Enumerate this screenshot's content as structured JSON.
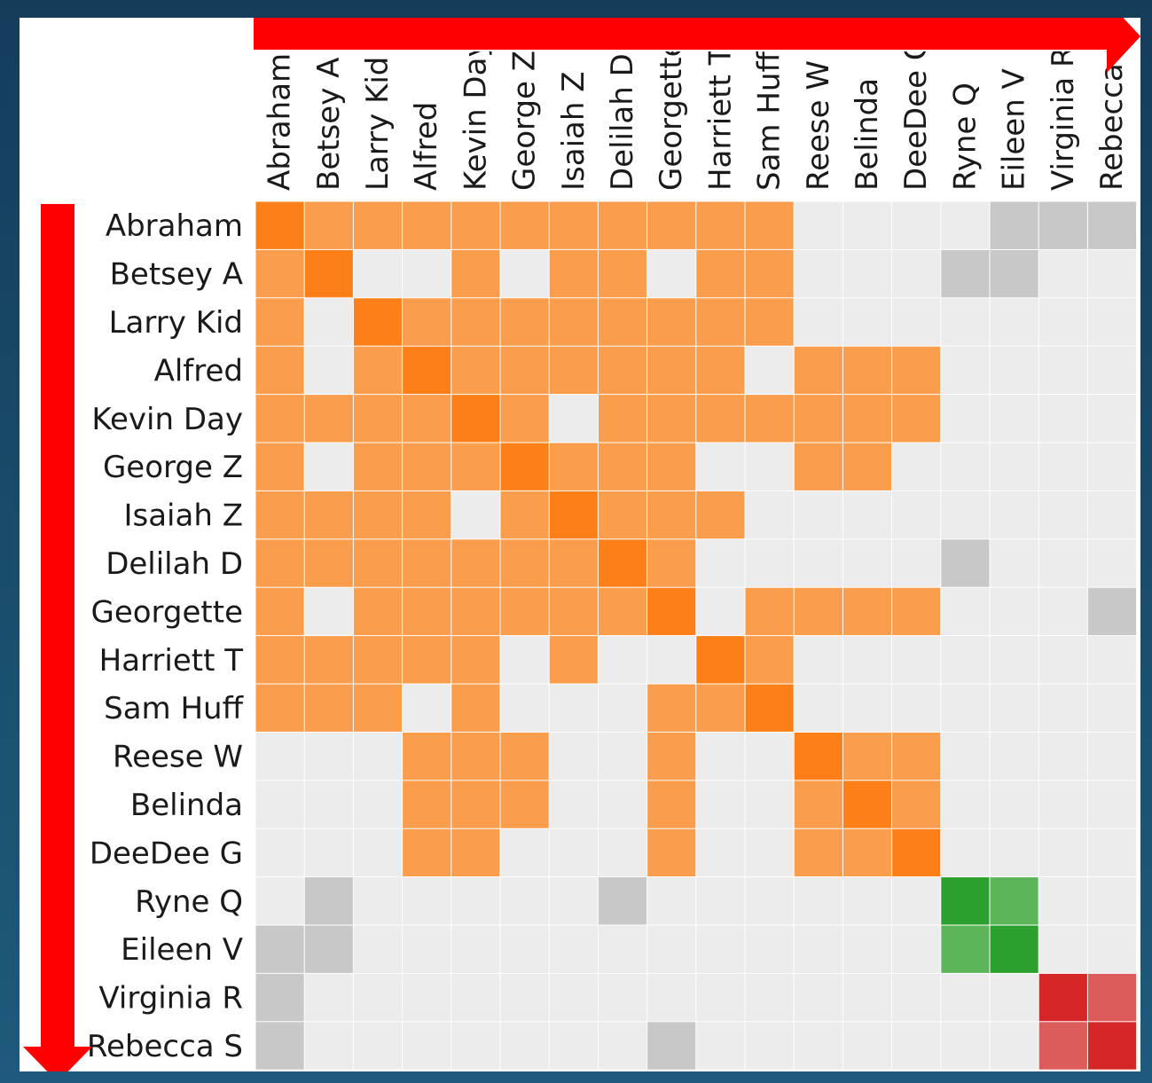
{
  "chart_data": {
    "type": "heatmap",
    "title": "",
    "row_labels": [
      "Abraham",
      "Betsey A",
      "Larry Kid",
      "Alfred",
      "Kevin Day",
      "George Z",
      "Isaiah Z",
      "Delilah D",
      "Georgette",
      "Harriett T",
      "Sam Huff",
      "Reese W",
      "Belinda",
      "DeeDee G",
      "Ryne Q",
      "Eileen V",
      "Virginia R",
      "Rebecca S"
    ],
    "col_labels": [
      "Abraham",
      "Betsey A",
      "Larry Kid",
      "Alfred",
      "Kevin Day",
      "George Z",
      "Isaiah Z",
      "Delilah D",
      "Georgette",
      "Harriett T",
      "Sam Huff",
      "Reese W",
      "Belinda",
      "DeeDee G",
      "Ryne Q",
      "Eileen V",
      "Virginia R",
      "Rebecca S"
    ],
    "legend_codes": {
      "0": "empty",
      "1": "orange group member",
      "2": "orange group self",
      "3": "grey link",
      "4": "green group member",
      "5": "green group self",
      "6": "red group member",
      "7": "red group self"
    },
    "colors": {
      "0": "#ececec",
      "1": "#fa9d4c",
      "2": "#fd7f17",
      "3": "#c8c8c8",
      "4": "#5db55a",
      "5": "#2ca02c",
      "6": "#dc5b5b",
      "7": "#d62728",
      "arrow": "#ff0000"
    },
    "matrix": [
      [
        2,
        1,
        1,
        1,
        1,
        1,
        1,
        1,
        1,
        1,
        1,
        0,
        0,
        0,
        0,
        3,
        3,
        3
      ],
      [
        1,
        2,
        0,
        0,
        1,
        0,
        1,
        1,
        0,
        1,
        1,
        0,
        0,
        0,
        3,
        3,
        0,
        0
      ],
      [
        1,
        0,
        2,
        1,
        1,
        1,
        1,
        1,
        1,
        1,
        1,
        0,
        0,
        0,
        0,
        0,
        0,
        0
      ],
      [
        1,
        0,
        1,
        2,
        1,
        1,
        1,
        1,
        1,
        1,
        0,
        1,
        1,
        1,
        0,
        0,
        0,
        0
      ],
      [
        1,
        1,
        1,
        1,
        2,
        1,
        0,
        1,
        1,
        1,
        1,
        1,
        1,
        1,
        0,
        0,
        0,
        0
      ],
      [
        1,
        0,
        1,
        1,
        1,
        2,
        1,
        1,
        1,
        0,
        0,
        1,
        1,
        0,
        0,
        0,
        0,
        0
      ],
      [
        1,
        1,
        1,
        1,
        0,
        1,
        2,
        1,
        1,
        1,
        0,
        0,
        0,
        0,
        0,
        0,
        0,
        0
      ],
      [
        1,
        1,
        1,
        1,
        1,
        1,
        1,
        2,
        1,
        0,
        0,
        0,
        0,
        0,
        3,
        0,
        0,
        0
      ],
      [
        1,
        0,
        1,
        1,
        1,
        1,
        1,
        1,
        2,
        0,
        1,
        1,
        1,
        1,
        0,
        0,
        0,
        3
      ],
      [
        1,
        1,
        1,
        1,
        1,
        0,
        1,
        0,
        0,
        2,
        1,
        0,
        0,
        0,
        0,
        0,
        0,
        0
      ],
      [
        1,
        1,
        1,
        0,
        1,
        0,
        0,
        0,
        1,
        1,
        2,
        0,
        0,
        0,
        0,
        0,
        0,
        0
      ],
      [
        0,
        0,
        0,
        1,
        1,
        1,
        0,
        0,
        1,
        0,
        0,
        2,
        1,
        1,
        0,
        0,
        0,
        0
      ],
      [
        0,
        0,
        0,
        1,
        1,
        1,
        0,
        0,
        1,
        0,
        0,
        1,
        2,
        1,
        0,
        0,
        0,
        0
      ],
      [
        0,
        0,
        0,
        1,
        1,
        0,
        0,
        0,
        1,
        0,
        0,
        1,
        1,
        2,
        0,
        0,
        0,
        0
      ],
      [
        0,
        3,
        0,
        0,
        0,
        0,
        0,
        3,
        0,
        0,
        0,
        0,
        0,
        0,
        5,
        4,
        0,
        0
      ],
      [
        3,
        3,
        0,
        0,
        0,
        0,
        0,
        0,
        0,
        0,
        0,
        0,
        0,
        0,
        4,
        5,
        0,
        0
      ],
      [
        3,
        0,
        0,
        0,
        0,
        0,
        0,
        0,
        0,
        0,
        0,
        0,
        0,
        0,
        0,
        0,
        7,
        6
      ],
      [
        3,
        0,
        0,
        0,
        0,
        0,
        0,
        0,
        3,
        0,
        0,
        0,
        0,
        0,
        0,
        0,
        6,
        7
      ]
    ]
  }
}
